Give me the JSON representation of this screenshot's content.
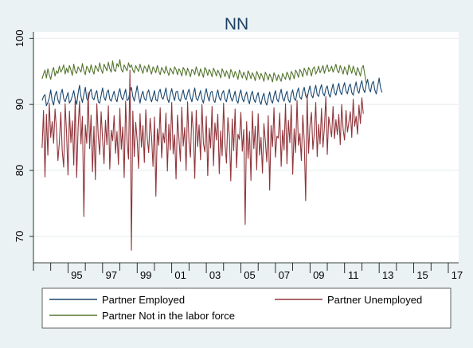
{
  "chart_data": {
    "type": "line",
    "title": "NN",
    "xlabel": "",
    "ylabel": "",
    "ylim": [
      66,
      101
    ],
    "xlim": [
      1993.0,
      2017.6
    ],
    "y_ticks": [
      70,
      80,
      90,
      100
    ],
    "y_tick_labels": [
      "70",
      "80",
      "90",
      "100"
    ],
    "x_ticks": [
      1995,
      1997,
      1999,
      2001,
      2003,
      2005,
      2007,
      2009,
      2011,
      2013,
      2015,
      2017
    ],
    "x_tick_labels": [
      "95",
      "97",
      "99",
      "01",
      "03",
      "05",
      "07",
      "09",
      "11",
      "13",
      "15",
      "17"
    ],
    "grid": "horizontal",
    "legend_position": "bottom",
    "x_start": 1993.5,
    "x_step": 0.08333,
    "series": [
      {
        "name": "Partner Employed",
        "color": "#1a476f",
        "values": [
          90.6,
          91.2,
          91.5,
          89.8,
          90.3,
          91.0,
          92.2,
          90.5,
          89.9,
          91.4,
          92.0,
          90.7,
          90.1,
          91.6,
          92.3,
          90.9,
          90.4,
          91.1,
          91.8,
          90.2,
          90.6,
          91.3,
          92.1,
          90.8,
          90.0,
          91.7,
          92.9,
          91.2,
          90.3,
          91.5,
          92.6,
          90.9,
          90.5,
          91.9,
          92.3,
          91.0,
          90.7,
          91.6,
          92.1,
          90.4,
          90.2,
          91.4,
          92.5,
          91.1,
          90.6,
          91.8,
          92.2,
          90.8,
          90.5,
          91.3,
          92.0,
          90.9,
          90.4,
          91.7,
          92.4,
          91.1,
          90.7,
          91.5,
          92.3,
          90.6,
          90.8,
          91.9,
          92.6,
          91.2,
          90.5,
          91.6,
          92.8,
          91.3,
          90.2,
          91.4,
          92.0,
          90.9,
          90.6,
          91.7,
          92.2,
          91.0,
          90.4,
          91.2,
          92.1,
          90.7,
          90.5,
          91.8,
          92.3,
          91.1,
          90.8,
          91.6,
          92.5,
          90.9,
          90.3,
          91.5,
          92.4,
          91.3,
          90.6,
          91.9,
          92.0,
          90.8,
          90.5,
          91.4,
          92.2,
          91.0,
          90.7,
          91.7,
          92.3,
          91.1,
          90.4,
          91.6,
          92.5,
          90.9,
          90.6,
          91.3,
          92.1,
          90.8,
          90.2,
          91.5,
          92.4,
          91.2,
          90.5,
          91.8,
          92.0,
          90.7,
          90.3,
          91.4,
          92.2,
          91.0,
          90.6,
          91.7,
          92.1,
          90.8,
          90.4,
          91.6,
          92.3,
          91.1,
          90.5,
          91.2,
          92.0,
          90.6,
          90.2,
          91.5,
          92.2,
          90.9,
          90.4,
          91.3,
          91.9,
          90.7,
          90.1,
          91.4,
          92.0,
          90.8,
          90.3,
          91.2,
          91.8,
          90.5,
          90.0,
          91.1,
          91.7,
          90.4,
          89.9,
          91.0,
          91.9,
          90.6,
          90.2,
          91.3,
          92.1,
          90.8,
          90.4,
          91.5,
          92.3,
          91.0,
          90.5,
          91.4,
          92.0,
          90.7,
          90.3,
          91.6,
          92.2,
          90.9,
          90.6,
          91.8,
          92.5,
          91.1,
          90.8,
          91.9,
          92.6,
          91.3,
          90.9,
          92.0,
          92.8,
          91.4,
          91.0,
          92.1,
          92.9,
          91.5,
          91.2,
          92.3,
          93.0,
          91.7,
          91.3,
          92.4,
          92.8,
          91.6,
          91.1,
          92.2,
          93.1,
          91.8,
          91.4,
          92.5,
          93.2,
          91.9,
          91.5,
          92.6,
          93.3,
          92.0,
          91.6,
          92.7,
          93.1,
          91.8,
          91.4,
          92.5,
          93.4,
          92.1,
          91.7,
          92.9,
          93.6,
          92.3,
          91.8,
          93.0,
          93.8,
          92.4,
          91.9,
          93.1,
          93.5,
          92.2,
          91.6,
          92.8,
          94.0,
          92.5,
          91.8
        ]
      },
      {
        "name": "Partner Unemployed",
        "color": "#90353b",
        "values": [
          83.4,
          89.1,
          79.0,
          88.5,
          82.3,
          90.2,
          85.0,
          87.4,
          84.1,
          89.3,
          86.2,
          81.5,
          84.3,
          88.8,
          82.9,
          80.5,
          90.1,
          85.6,
          79.3,
          89.0,
          84.2,
          87.5,
          80.8,
          91.0,
          78.9,
          86.4,
          90.5,
          84.0,
          88.2,
          73.0,
          86.9,
          84.1,
          91.8,
          83.3,
          88.4,
          79.8,
          86.7,
          78.6,
          90.1,
          85.2,
          82.4,
          88.9,
          84.7,
          81.0,
          87.6,
          83.9,
          89.8,
          80.2,
          86.1,
          84.5,
          88.3,
          82.6,
          85.9,
          80.9,
          89.4,
          83.2,
          86.6,
          78.9,
          90.5,
          84.4,
          81.7,
          95.2,
          67.9,
          89.0,
          82.1,
          87.3,
          84.6,
          80.3,
          88.6,
          83.5,
          86.8,
          81.2,
          89.2,
          84.9,
          82.7,
          87.9,
          85.1,
          80.6,
          88.1,
          76.1,
          86.3,
          83.8,
          89.5,
          81.9,
          85.7,
          84.2,
          88.7,
          79.9,
          87.0,
          83.1,
          90.3,
          82.5,
          85.4,
          78.7,
          88.4,
          84.8,
          81.4,
          89.6,
          83.7,
          86.5,
          80.0,
          90.4,
          84.3,
          82.0,
          88.9,
          85.8,
          78.8,
          89.1,
          83.6,
          86.9,
          81.6,
          90.0,
          84.1,
          82.8,
          88.2,
          79.2,
          86.4,
          83.4,
          89.7,
          80.7,
          87.2,
          84.6,
          88.5,
          79.5,
          86.0,
          82.2,
          90.2,
          84.0,
          81.1,
          88.0,
          85.3,
          78.4,
          87.8,
          83.0,
          89.3,
          80.4,
          85.5,
          84.7,
          88.8,
          82.9,
          86.2,
          71.8,
          87.4,
          81.8,
          85.9,
          78.5,
          89.0,
          83.3,
          86.7,
          80.1,
          88.6,
          82.3,
          85.0,
          79.6,
          87.1,
          84.4,
          81.3,
          88.3,
          77.0,
          86.8,
          83.6,
          89.5,
          82.0,
          85.2,
          84.9,
          88.7,
          80.6,
          86.1,
          83.1,
          90.1,
          81.0,
          87.6,
          84.2,
          89.9,
          79.4,
          86.3,
          82.7,
          90.6,
          83.8,
          85.6,
          81.5,
          88.4,
          84.5,
          75.4,
          91.5,
          82.6,
          86.9,
          88.8,
          83.2,
          85.7,
          90.3,
          82.1,
          87.0,
          84.0,
          89.4,
          83.5,
          86.5,
          91.2,
          82.4,
          88.1,
          86.6,
          85.1,
          89.7,
          84.8,
          87.7,
          85.4,
          88.5,
          83.9,
          90.0,
          86.2,
          84.6,
          89.1,
          85.8,
          87.3,
          88.9,
          85.0,
          90.8,
          86.7,
          88.2,
          85.5,
          89.9,
          87.1,
          91.0,
          88.6
        ]
      },
      {
        "name": "Partner Not in the labor force",
        "color": "#55752f",
        "values": [
          93.9,
          94.6,
          95.2,
          94.0,
          95.4,
          94.5,
          93.8,
          95.0,
          95.6,
          94.3,
          95.1,
          94.7,
          95.8,
          94.9,
          95.3,
          96.0,
          94.6,
          95.5,
          94.8,
          95.9,
          95.2,
          94.4,
          96.1,
          95.0,
          94.7,
          95.7,
          95.3,
          94.9,
          96.2,
          95.1,
          94.5,
          95.8,
          95.4,
          94.8,
          96.0,
          95.2,
          94.6,
          95.9,
          95.5,
          95.0,
          96.3,
          95.3,
          94.7,
          96.1,
          95.6,
          95.1,
          96.4,
          95.4,
          94.9,
          96.6,
          95.2,
          95.0,
          96.2,
          95.7,
          96.8,
          95.3,
          94.9,
          96.0,
          95.5,
          95.1,
          96.3,
          95.6,
          96.0,
          95.2,
          94.8,
          95.9,
          95.4,
          95.0,
          96.1,
          95.3,
          94.7,
          95.8,
          95.5,
          94.9,
          96.0,
          95.2,
          94.6,
          95.7,
          95.3,
          94.8,
          95.9,
          95.1,
          94.5,
          95.6,
          95.2,
          94.7,
          95.8,
          95.0,
          94.4,
          95.5,
          95.1,
          94.6,
          95.7,
          95.3,
          94.5,
          95.4,
          95.0,
          94.3,
          95.6,
          95.2,
          94.4,
          95.5,
          94.9,
          94.2,
          95.3,
          95.1,
          94.5,
          95.7,
          95.0,
          94.3,
          95.4,
          94.8,
          94.1,
          95.6,
          95.2,
          94.4,
          95.3,
          94.9,
          94.2,
          95.5,
          95.0,
          94.3,
          95.2,
          94.7,
          94.0,
          95.4,
          94.9,
          94.2,
          95.1,
          94.6,
          93.9,
          95.3,
          94.8,
          94.1,
          95.0,
          94.5,
          93.8,
          95.2,
          94.7,
          94.0,
          94.9,
          94.4,
          93.7,
          95.1,
          94.6,
          93.9,
          94.8,
          94.3,
          93.6,
          95.0,
          94.5,
          93.8,
          94.7,
          94.2,
          93.5,
          94.9,
          94.4,
          93.7,
          94.6,
          94.1,
          93.4,
          94.8,
          94.3,
          93.6,
          94.5,
          94.0,
          93.5,
          94.7,
          94.2,
          93.8,
          94.9,
          94.4,
          93.7,
          95.0,
          94.6,
          93.9,
          95.2,
          94.8,
          94.1,
          95.3,
          94.9,
          94.2,
          95.5,
          95.0,
          94.4,
          95.6,
          95.2,
          94.3,
          95.4,
          95.7,
          94.6,
          95.1,
          95.8,
          94.8,
          95.3,
          95.9,
          94.7,
          95.5,
          96.0,
          95.0,
          95.2,
          95.8,
          94.9,
          95.4,
          96.1,
          95.1,
          94.8,
          95.9,
          95.3,
          94.6,
          95.7,
          95.2,
          94.5,
          96.0,
          95.4,
          94.7,
          95.8,
          95.1,
          94.4,
          95.6,
          95.0,
          94.3,
          95.5,
          95.9,
          94.6,
          93.2
        ]
      }
    ]
  }
}
